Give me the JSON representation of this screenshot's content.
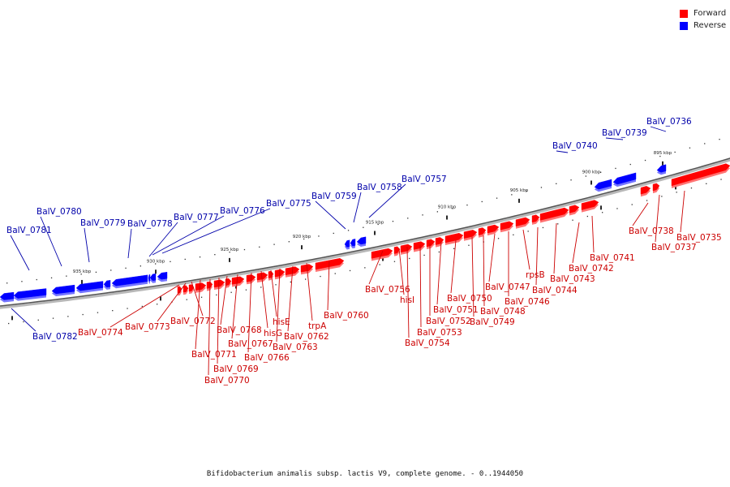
{
  "legend": {
    "forward_label": "Forward",
    "reverse_label": "Reverse",
    "forward_color": "#ff0000",
    "reverse_color": "#0000ff"
  },
  "caption": "Bifidobacterium animalis subsp. lactis V9, complete genome. - 0..1944050",
  "label_colors": {
    "forward": "#cc0000",
    "reverse": "#0000aa"
  },
  "ticks": [
    "895 kbp",
    "900 kbp",
    "905 kbp",
    "910 kbp",
    "915 kbp",
    "920 kbp",
    "925 kbp",
    "930 kbp",
    "935 kbp"
  ],
  "genes": [
    {
      "name": "BalV_0736",
      "strand": "reverse"
    },
    {
      "name": "BalV_0735",
      "strand": "forward"
    },
    {
      "name": "BalV_0737",
      "strand": "forward"
    },
    {
      "name": "BalV_0738",
      "strand": "forward"
    },
    {
      "name": "BalV_0739",
      "strand": "reverse"
    },
    {
      "name": "BalV_0740",
      "strand": "reverse"
    },
    {
      "name": "BalV_0741",
      "strand": "forward"
    },
    {
      "name": "BalV_0742",
      "strand": "forward"
    },
    {
      "name": "BalV_0743",
      "strand": "forward"
    },
    {
      "name": "BalV_0744",
      "strand": "forward"
    },
    {
      "name": "rpsB",
      "strand": "forward"
    },
    {
      "name": "BalV_0746",
      "strand": "forward"
    },
    {
      "name": "BalV_0747",
      "strand": "forward"
    },
    {
      "name": "BalV_0748",
      "strand": "forward"
    },
    {
      "name": "BalV_0749",
      "strand": "forward"
    },
    {
      "name": "BalV_0750",
      "strand": "forward"
    },
    {
      "name": "BalV_0751",
      "strand": "forward"
    },
    {
      "name": "BalV_0752",
      "strand": "forward"
    },
    {
      "name": "BalV_0753",
      "strand": "forward"
    },
    {
      "name": "BalV_0754",
      "strand": "forward"
    },
    {
      "name": "hisI",
      "strand": "forward"
    },
    {
      "name": "BalV_0756",
      "strand": "forward"
    },
    {
      "name": "BalV_0757",
      "strand": "reverse"
    },
    {
      "name": "BalV_0758",
      "strand": "reverse"
    },
    {
      "name": "BalV_0759",
      "strand": "reverse"
    },
    {
      "name": "BalV_0760",
      "strand": "forward"
    },
    {
      "name": "trpA",
      "strand": "forward"
    },
    {
      "name": "BalV_0762",
      "strand": "forward"
    },
    {
      "name": "BalV_0763",
      "strand": "forward"
    },
    {
      "name": "hisE",
      "strand": "forward"
    },
    {
      "name": "hisG",
      "strand": "forward"
    },
    {
      "name": "BalV_0766",
      "strand": "forward"
    },
    {
      "name": "BalV_0767",
      "strand": "forward"
    },
    {
      "name": "BalV_0768",
      "strand": "forward"
    },
    {
      "name": "BalV_0769",
      "strand": "forward"
    },
    {
      "name": "BalV_0770",
      "strand": "forward"
    },
    {
      "name": "BalV_0771",
      "strand": "forward"
    },
    {
      "name": "BalV_0772",
      "strand": "forward"
    },
    {
      "name": "BalV_0773",
      "strand": "forward"
    },
    {
      "name": "BalV_0774",
      "strand": "forward"
    },
    {
      "name": "BalV_0775",
      "strand": "reverse"
    },
    {
      "name": "BalV_0776",
      "strand": "reverse"
    },
    {
      "name": "BalV_0777",
      "strand": "reverse"
    },
    {
      "name": "BalV_0778",
      "strand": "reverse"
    },
    {
      "name": "BalV_0779",
      "strand": "reverse"
    },
    {
      "name": "BalV_0780",
      "strand": "reverse"
    },
    {
      "name": "BalV_0781",
      "strand": "reverse"
    },
    {
      "name": "BalV_0782",
      "strand": "reverse"
    }
  ]
}
